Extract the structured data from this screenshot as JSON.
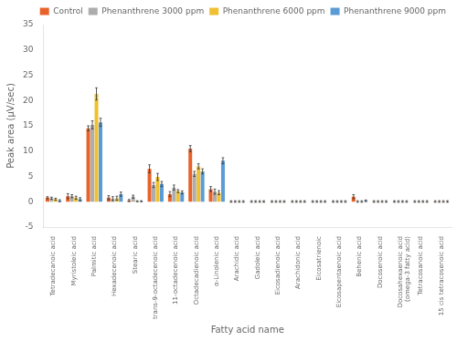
{
  "chart_data": {
    "type": "bar",
    "xlabel": "Fatty acid name",
    "ylabel": "Peak area (μV/sec)",
    "categories": [
      "Tetradecanoic acid",
      "Myristoleic acid",
      "Palmitic acid",
      "Hexadecenoic acid",
      "Stearic acid",
      "trans-9-octadecenoic acid",
      "11-octadecenoic acid",
      "Octadecadienoic acid",
      "α-Linolenic acid",
      "Arachidic acid",
      "Gadoleic acid",
      "Eicosadienoic acid",
      "Arachidonic acid",
      "Eicosatrienoic",
      "Eicosapentaenoic acid",
      "Behenic acid",
      "Docosenoic acid",
      "Docosahexaenoic acid\n(omega-3 fatty acid)",
      "Tetracosanoic acid",
      "15 cis tetracosenoic acid"
    ],
    "series": [
      {
        "name": "Control",
        "color": "#E8622A",
        "values": [
          0.8,
          1.1,
          14.5,
          0.8,
          0.25,
          6.5,
          1.5,
          10.5,
          2.5,
          0.05,
          0.05,
          0.05,
          0.05,
          0.05,
          0.05,
          1.0,
          0.05,
          0.05,
          0.05,
          0.05
        ],
        "errors": [
          0.2,
          0.5,
          0.5,
          0.4,
          0.2,
          0.8,
          0.5,
          0.6,
          0.5,
          0.15,
          0.15,
          0.15,
          0.15,
          0.15,
          0.15,
          0.4,
          0.15,
          0.15,
          0.15,
          0.15
        ]
      },
      {
        "name": "Phenanthrene 3000 ppm",
        "color": "#ADADAD",
        "values": [
          0.7,
          1.1,
          15.2,
          0.6,
          1.0,
          3.3,
          2.8,
          5.5,
          2.0,
          0.05,
          0.05,
          0.05,
          0.05,
          0.05,
          0.05,
          0.05,
          0.05,
          0.05,
          0.05,
          0.05
        ],
        "errors": [
          0.2,
          0.3,
          0.8,
          0.4,
          0.3,
          0.5,
          0.5,
          0.5,
          0.5,
          0.15,
          0.15,
          0.15,
          0.15,
          0.15,
          0.15,
          0.15,
          0.15,
          0.15,
          0.15,
          0.15
        ]
      },
      {
        "name": "Phenanthrene 6000 ppm",
        "color": "#F0C030",
        "values": [
          0.5,
          0.8,
          21.3,
          0.7,
          0.1,
          4.9,
          2.1,
          7.0,
          1.8,
          0.05,
          0.05,
          0.05,
          0.05,
          0.05,
          0.05,
          0.05,
          0.05,
          0.05,
          0.05,
          0.05
        ],
        "errors": [
          0.2,
          0.3,
          1.2,
          0.4,
          0.1,
          0.7,
          0.3,
          0.5,
          0.4,
          0.15,
          0.15,
          0.15,
          0.15,
          0.15,
          0.15,
          0.15,
          0.15,
          0.15,
          0.15,
          0.15
        ]
      },
      {
        "name": "Phenanthrene 9000 ppm",
        "color": "#5B9BD5",
        "values": [
          0.2,
          0.5,
          15.7,
          1.5,
          0.1,
          3.5,
          1.85,
          6.0,
          8.1,
          0.05,
          0.05,
          0.05,
          0.05,
          0.05,
          0.05,
          0.2,
          0.05,
          0.05,
          0.05,
          0.05
        ],
        "errors": [
          0.2,
          0.3,
          0.8,
          0.4,
          0.1,
          0.5,
          0.3,
          0.5,
          0.6,
          0.15,
          0.15,
          0.15,
          0.15,
          0.15,
          0.15,
          0.15,
          0.15,
          0.15,
          0.15,
          0.15
        ]
      }
    ],
    "ylim": [
      -5,
      35
    ],
    "yticks": [
      -5,
      0,
      5,
      10,
      15,
      20,
      25,
      30,
      35
    ],
    "grid": false,
    "legend": "upper right"
  }
}
